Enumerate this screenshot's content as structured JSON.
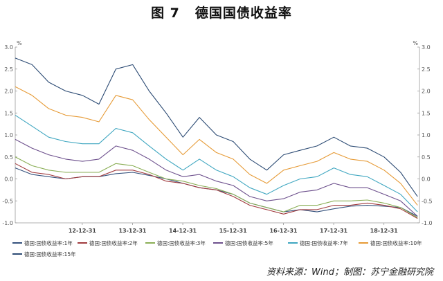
{
  "title": {
    "label": "图 7",
    "text": "德国国债收益率"
  },
  "source_note": "资料来源：Wind；制图：苏宁金融研究院",
  "chart_data": {
    "type": "line",
    "title": "德国国债收益率",
    "ylabel": "%",
    "y_right_label": "%",
    "ylim": [
      -1.0,
      3.0
    ],
    "y_ticks": [
      -1.0,
      -0.5,
      0.0,
      0.5,
      1.0,
      1.5,
      2.0,
      2.5,
      3.0
    ],
    "y_tick_labels": [
      "-1.0",
      "-0.5",
      "0.0",
      "0.5",
      "1.0",
      "1.5",
      "2.0",
      "2.5",
      "3.0"
    ],
    "xlim": [
      "2011-09-01",
      "2019-09-15"
    ],
    "x_ticks": [
      "2012-12-31",
      "2013-12-31",
      "2014-12-31",
      "2015-12-31",
      "2016-12-31",
      "2017-12-31",
      "2018-12-31"
    ],
    "x_tick_labels": [
      "12-12-31",
      "13-12-31",
      "14-12-31",
      "15-12-31",
      "16-12-31",
      "17-12-31",
      "18-12-31"
    ],
    "grid": false,
    "legend_position": "bottom",
    "series": [
      {
        "name": "德国:国债收益率:1年",
        "color": "#33507c",
        "x": [
          "2011-09-01",
          "2012-01-01",
          "2012-05-01",
          "2012-09-01",
          "2013-01-01",
          "2013-05-01",
          "2013-09-01",
          "2014-01-01",
          "2014-05-01",
          "2014-09-01",
          "2015-01-01",
          "2015-05-01",
          "2015-09-01",
          "2016-01-01",
          "2016-05-01",
          "2016-09-01",
          "2017-01-01",
          "2017-05-01",
          "2017-09-01",
          "2018-01-01",
          "2018-05-01",
          "2018-09-01",
          "2019-01-01",
          "2019-05-01",
          "2019-09-01"
        ],
        "values": [
          0.25,
          0.1,
          0.05,
          0.0,
          0.05,
          0.05,
          0.12,
          0.15,
          0.08,
          0.0,
          -0.1,
          -0.2,
          -0.25,
          -0.35,
          -0.55,
          -0.65,
          -0.75,
          -0.7,
          -0.75,
          -0.68,
          -0.62,
          -0.6,
          -0.62,
          -0.65,
          -0.85
        ]
      },
      {
        "name": "德国:国债收益率:2年",
        "color": "#a03a3d",
        "x": [
          "2011-09-01",
          "2012-01-01",
          "2012-05-01",
          "2012-09-01",
          "2013-01-01",
          "2013-05-01",
          "2013-09-01",
          "2014-01-01",
          "2014-05-01",
          "2014-09-01",
          "2015-01-01",
          "2015-05-01",
          "2015-09-01",
          "2016-01-01",
          "2016-05-01",
          "2016-09-01",
          "2017-01-01",
          "2017-05-01",
          "2017-09-01",
          "2018-01-01",
          "2018-05-01",
          "2018-09-01",
          "2019-01-01",
          "2019-05-01",
          "2019-09-01"
        ],
        "values": [
          0.35,
          0.15,
          0.1,
          0.0,
          0.05,
          0.05,
          0.2,
          0.2,
          0.1,
          -0.05,
          -0.1,
          -0.2,
          -0.25,
          -0.4,
          -0.6,
          -0.7,
          -0.8,
          -0.7,
          -0.7,
          -0.6,
          -0.6,
          -0.55,
          -0.6,
          -0.68,
          -0.9
        ]
      },
      {
        "name": "德国:国债收益率:3年",
        "color": "#8aae55",
        "x": [
          "2011-09-01",
          "2012-01-01",
          "2012-05-01",
          "2012-09-01",
          "2013-01-01",
          "2013-05-01",
          "2013-09-01",
          "2014-01-01",
          "2014-05-01",
          "2014-09-01",
          "2015-01-01",
          "2015-05-01",
          "2015-09-01",
          "2016-01-01",
          "2016-05-01",
          "2016-09-01",
          "2017-01-01",
          "2017-05-01",
          "2017-09-01",
          "2018-01-01",
          "2018-05-01",
          "2018-09-01",
          "2019-01-01",
          "2019-05-01",
          "2019-09-01"
        ],
        "values": [
          0.5,
          0.3,
          0.2,
          0.15,
          0.15,
          0.15,
          0.35,
          0.3,
          0.15,
          0.0,
          -0.05,
          -0.15,
          -0.22,
          -0.35,
          -0.55,
          -0.65,
          -0.75,
          -0.6,
          -0.6,
          -0.5,
          -0.5,
          -0.48,
          -0.55,
          -0.65,
          -0.88
        ]
      },
      {
        "name": "德国:国债收益率:5年",
        "color": "#6c4f8c",
        "x": [
          "2011-09-01",
          "2012-01-01",
          "2012-05-01",
          "2012-09-01",
          "2013-01-01",
          "2013-05-01",
          "2013-09-01",
          "2014-01-01",
          "2014-05-01",
          "2014-09-01",
          "2015-01-01",
          "2015-05-01",
          "2015-09-01",
          "2016-01-01",
          "2016-05-01",
          "2016-09-01",
          "2017-01-01",
          "2017-05-01",
          "2017-09-01",
          "2018-01-01",
          "2018-05-01",
          "2018-09-01",
          "2019-01-01",
          "2019-05-01",
          "2019-09-01"
        ],
        "values": [
          0.9,
          0.7,
          0.55,
          0.45,
          0.4,
          0.45,
          0.75,
          0.65,
          0.45,
          0.2,
          0.05,
          0.1,
          -0.05,
          -0.15,
          -0.4,
          -0.5,
          -0.45,
          -0.3,
          -0.25,
          -0.1,
          -0.2,
          -0.2,
          -0.35,
          -0.5,
          -0.85
        ]
      },
      {
        "name": "德国:国债收益率:7年",
        "color": "#3ea6c0",
        "x": [
          "2011-09-01",
          "2012-01-01",
          "2012-05-01",
          "2012-09-01",
          "2013-01-01",
          "2013-05-01",
          "2013-09-01",
          "2014-01-01",
          "2014-05-01",
          "2014-09-01",
          "2015-01-01",
          "2015-05-01",
          "2015-09-01",
          "2016-01-01",
          "2016-05-01",
          "2016-09-01",
          "2017-01-01",
          "2017-05-01",
          "2017-09-01",
          "2018-01-01",
          "2018-05-01",
          "2018-09-01",
          "2019-01-01",
          "2019-05-01",
          "2019-09-01"
        ],
        "values": [
          1.45,
          1.2,
          0.95,
          0.85,
          0.8,
          0.8,
          1.15,
          1.05,
          0.75,
          0.45,
          0.2,
          0.45,
          0.2,
          0.05,
          -0.2,
          -0.35,
          -0.15,
          0.0,
          0.05,
          0.25,
          0.1,
          0.05,
          -0.15,
          -0.35,
          -0.75
        ]
      },
      {
        "name": "德国:国债收益率:10年",
        "color": "#e69a35",
        "x": [
          "2011-09-01",
          "2012-01-01",
          "2012-05-01",
          "2012-09-01",
          "2013-01-01",
          "2013-05-01",
          "2013-09-01",
          "2014-01-01",
          "2014-05-01",
          "2014-09-01",
          "2015-01-01",
          "2015-05-01",
          "2015-09-01",
          "2016-01-01",
          "2016-05-01",
          "2016-09-01",
          "2017-01-01",
          "2017-05-01",
          "2017-09-01",
          "2018-01-01",
          "2018-05-01",
          "2018-09-01",
          "2019-01-01",
          "2019-05-01",
          "2019-09-01"
        ],
        "values": [
          2.1,
          1.9,
          1.6,
          1.45,
          1.4,
          1.3,
          1.9,
          1.8,
          1.35,
          0.95,
          0.55,
          0.9,
          0.6,
          0.45,
          0.1,
          -0.1,
          0.2,
          0.3,
          0.4,
          0.6,
          0.45,
          0.4,
          0.2,
          -0.1,
          -0.6
        ]
      },
      {
        "name": "德国:国债收益率:15年",
        "color": "#2b4a73",
        "x": [
          "2011-09-01",
          "2012-01-01",
          "2012-05-01",
          "2012-09-01",
          "2013-01-01",
          "2013-05-01",
          "2013-09-01",
          "2014-01-01",
          "2014-05-01",
          "2014-09-01",
          "2015-01-01",
          "2015-05-01",
          "2015-09-01",
          "2016-01-01",
          "2016-05-01",
          "2016-09-01",
          "2017-01-01",
          "2017-05-01",
          "2017-09-01",
          "2018-01-01",
          "2018-05-01",
          "2018-09-01",
          "2019-01-01",
          "2019-05-01",
          "2019-09-01"
        ],
        "values": [
          2.75,
          2.6,
          2.2,
          2.0,
          1.9,
          1.7,
          2.5,
          2.6,
          2.0,
          1.5,
          0.95,
          1.4,
          1.0,
          0.85,
          0.45,
          0.2,
          0.55,
          0.65,
          0.75,
          0.95,
          0.75,
          0.7,
          0.5,
          0.15,
          -0.4
        ]
      }
    ]
  }
}
